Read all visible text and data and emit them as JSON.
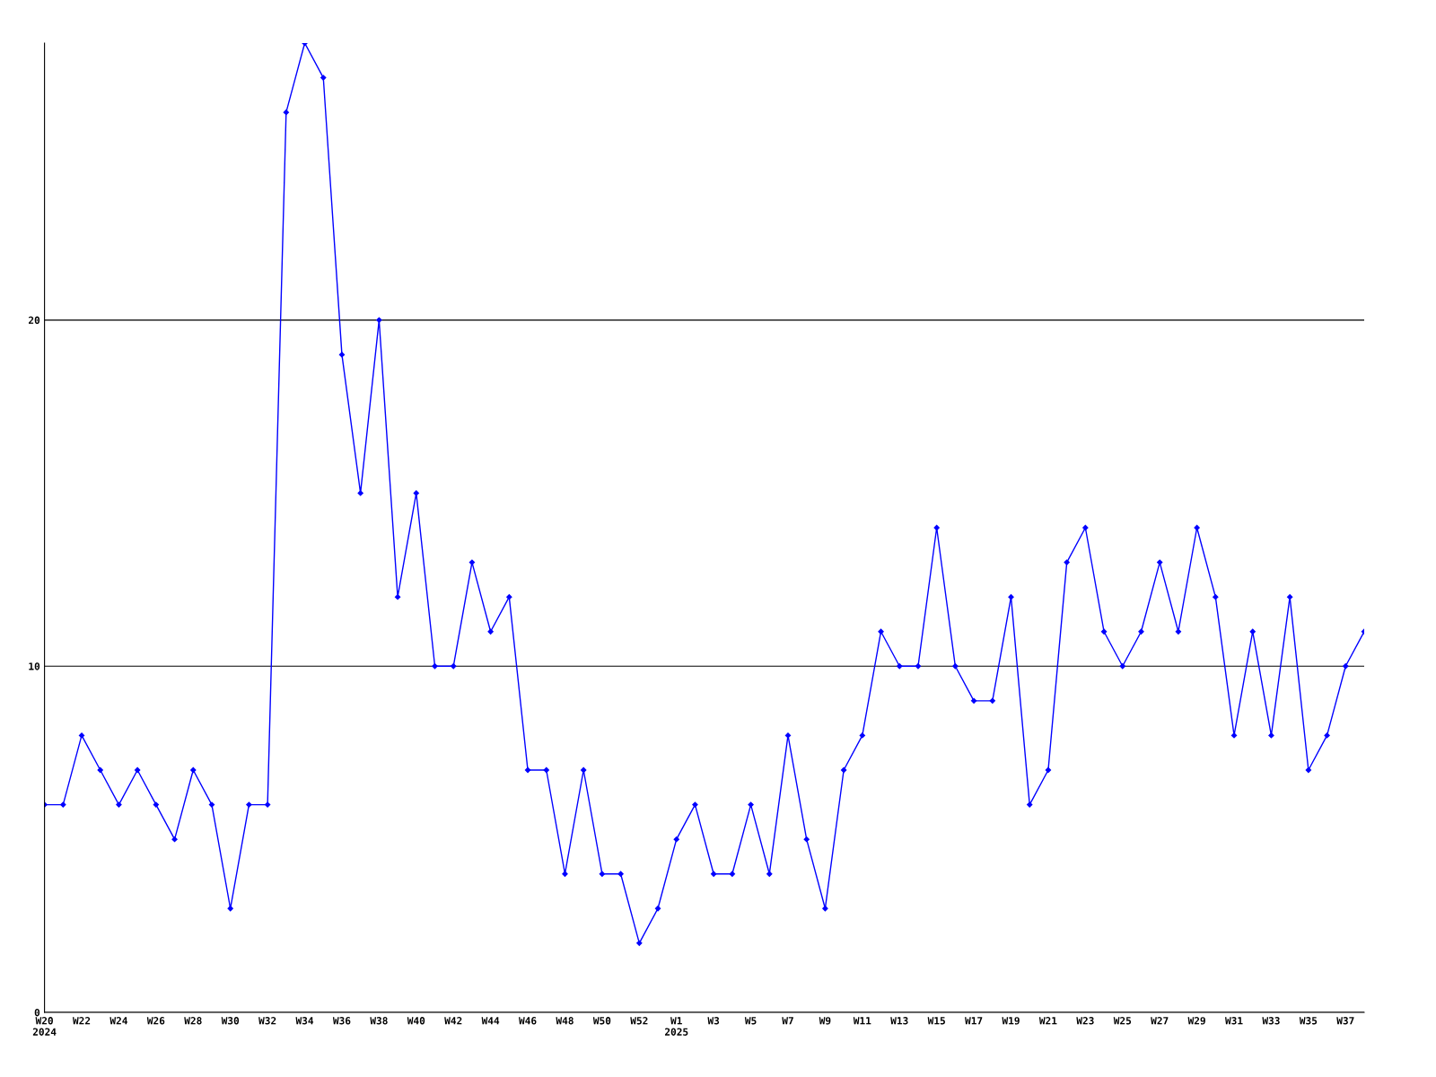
{
  "chart_data": {
    "type": "line",
    "categories": [
      "W20\n2024",
      null,
      "W22",
      null,
      "W24",
      null,
      "W26",
      null,
      "W28",
      null,
      "W30",
      null,
      "W32",
      null,
      "W34",
      null,
      "W36",
      null,
      "W38",
      null,
      "W40",
      null,
      "W42",
      null,
      "W44",
      null,
      "W46",
      null,
      "W48",
      null,
      "W50",
      null,
      "W52",
      null,
      "W1\n2025",
      null,
      "W3",
      null,
      "W5",
      null,
      "W7",
      null,
      "W9",
      null,
      "W11",
      null,
      "W13",
      null,
      "W15",
      null,
      "W17",
      null,
      "W19",
      null,
      "W21",
      null,
      "W23",
      null,
      "W25",
      null,
      "W27",
      null,
      "W29",
      null,
      "W31",
      null,
      "W33",
      null,
      "W35",
      null,
      "W37",
      null
    ],
    "series": [
      {
        "color": "#0000ff",
        "values": [
          6,
          6,
          8,
          7,
          6,
          7,
          6,
          5,
          7,
          6,
          3,
          6,
          6,
          26,
          28,
          27,
          19,
          15,
          20,
          12,
          15,
          10,
          10,
          13,
          11,
          12,
          7,
          7,
          4,
          7,
          4,
          4,
          2,
          3,
          5,
          6,
          4,
          4,
          6,
          4,
          8,
          5,
          3,
          7,
          8,
          11,
          10,
          10,
          14,
          10,
          9,
          9,
          12,
          6,
          7,
          13,
          14,
          11,
          10,
          11,
          13,
          11,
          14,
          12,
          8,
          11,
          8,
          12,
          7,
          8,
          10,
          11
        ]
      }
    ],
    "ylim": [
      0,
      28
    ],
    "yticks": [
      0,
      10,
      20
    ],
    "grid": "y",
    "marker": "diamond",
    "line_style": "solid",
    "legend": false
  }
}
